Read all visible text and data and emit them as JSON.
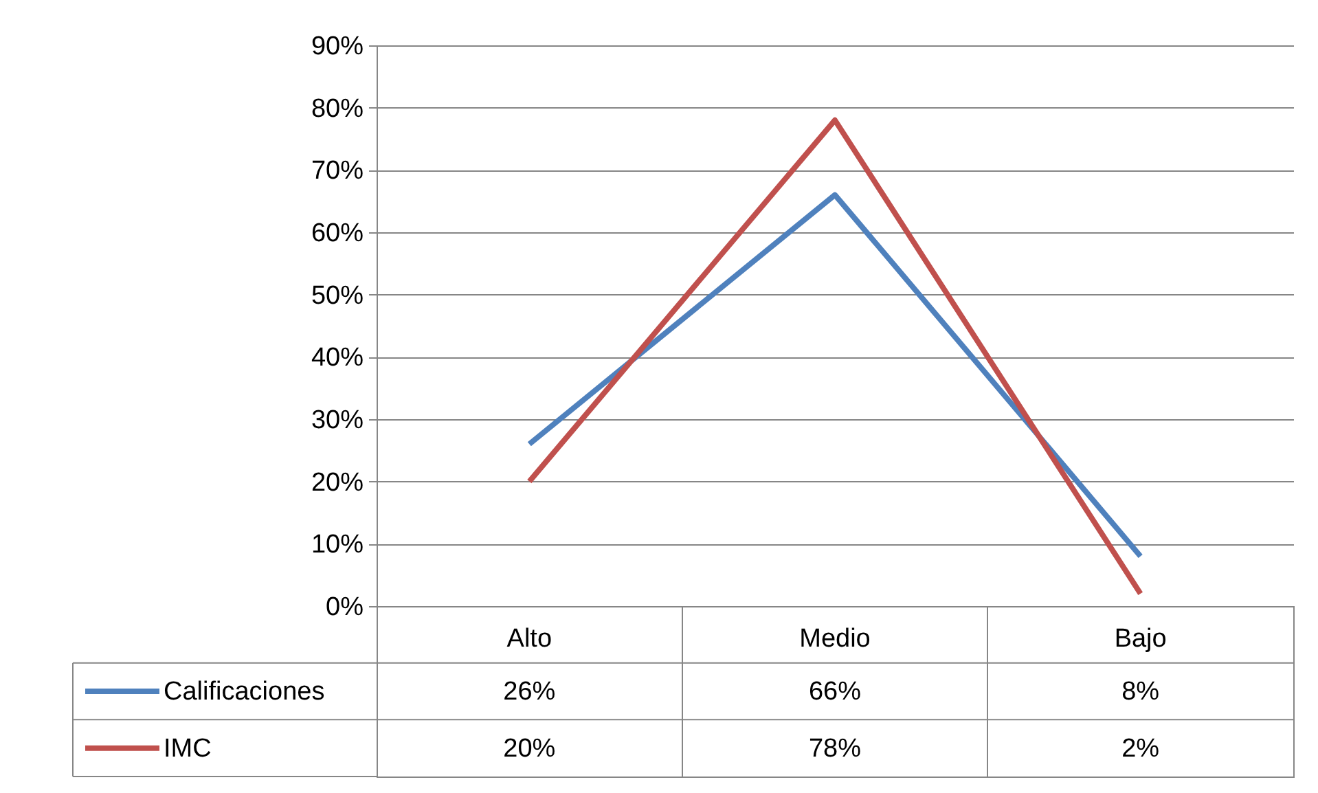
{
  "chart_data": {
    "type": "line",
    "categories": [
      "Alto",
      "Medio",
      "Bajo"
    ],
    "series": [
      {
        "name": "Calificaciones",
        "color": "#4f81bd",
        "values": [
          26,
          66,
          8
        ],
        "value_labels": [
          "26%",
          "66%",
          "8%"
        ]
      },
      {
        "name": "IMC",
        "color": "#c0504d",
        "values": [
          20,
          78,
          2
        ],
        "value_labels": [
          "20%",
          "78%",
          "2%"
        ]
      }
    ],
    "ylim": [
      0,
      90
    ],
    "yticks": [
      {
        "value": 0,
        "label": "0%"
      },
      {
        "value": 10,
        "label": "10%"
      },
      {
        "value": 20,
        "label": "20%"
      },
      {
        "value": 30,
        "label": "30%"
      },
      {
        "value": 40,
        "label": "40%"
      },
      {
        "value": 50,
        "label": "50%"
      },
      {
        "value": 60,
        "label": "60%"
      },
      {
        "value": 70,
        "label": "70%"
      },
      {
        "value": 80,
        "label": "80%"
      },
      {
        "value": 90,
        "label": "90%"
      }
    ],
    "grid": "y",
    "legend": "bottom"
  }
}
